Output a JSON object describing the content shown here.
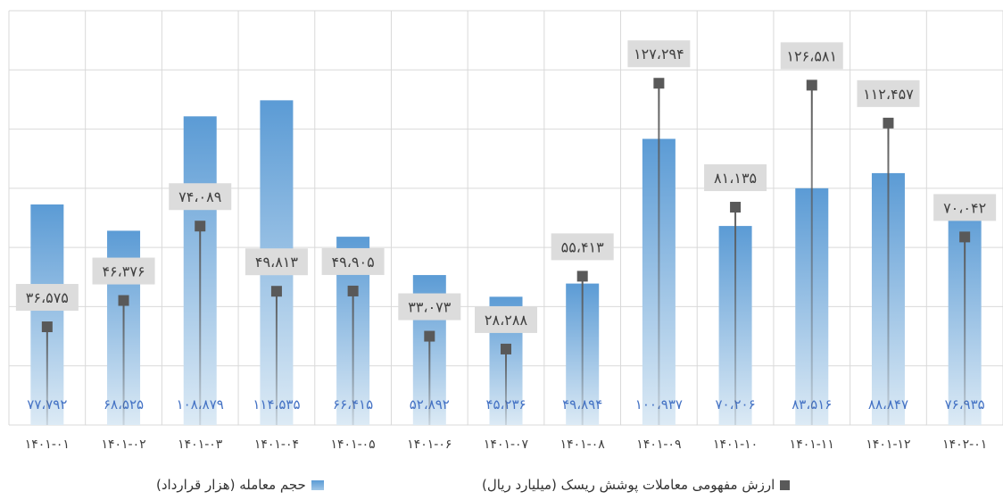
{
  "chart_data": {
    "type": "bar",
    "categories": [
      "۱۴۰۱-۰۱",
      "۱۴۰۱-۰۲",
      "۱۴۰۱-۰۳",
      "۱۴۰۱-۰۴",
      "۱۴۰۱-۰۵",
      "۱۴۰۱-۰۶",
      "۱۴۰۱-۰۷",
      "۱۴۰۱-۰۸",
      "۱۴۰۱-۰۹",
      "۱۴۰۱-۱۰",
      "۱۴۰۱-۱۱",
      "۱۴۰۱-۱۲",
      "۱۴۰۲-۰۱"
    ],
    "series": [
      {
        "name": "حجم معامله (هزار قرارداد)",
        "type": "bar",
        "values": [
          77792,
          68525,
          108879,
          114535,
          66415,
          52892,
          45236,
          49894,
          100937,
          70206,
          83516,
          88847,
          76935
        ],
        "labels": [
          "۷۷،۷۹۲",
          "۶۸،۵۲۵",
          "۱۰۸،۸۷۹",
          "۱۱۴،۵۳۵",
          "۶۶،۴۱۵",
          "۵۲،۸۹۲",
          "۴۵،۲۳۶",
          "۴۹،۸۹۴",
          "۱۰۰،۹۳۷",
          "۷۰،۲۰۶",
          "۸۳،۵۱۶",
          "۸۸،۸۴۷",
          "۷۶،۹۳۵"
        ],
        "color": "#5b9bd5"
      },
      {
        "name": "ارزش مفهومی معاملات  پوشش ریسک (میلیارد ریال)",
        "type": "marker",
        "values": [
          36575,
          46376,
          74089,
          49813,
          49905,
          33073,
          28288,
          55413,
          127294,
          81135,
          126581,
          112457,
          70042
        ],
        "labels": [
          "۳۶،۵۷۵",
          "۴۶،۳۷۶",
          "۷۴،۰۸۹",
          "۴۹،۸۱۳",
          "۴۹،۹۰۵",
          "۳۳،۰۷۳",
          "۲۸،۲۸۸",
          "۵۵،۴۱۳",
          "۱۲۷،۲۹۴",
          "۸۱،۱۳۵",
          "۱۲۶،۵۸۱",
          "۱۱۲،۴۵۷",
          "۷۰،۰۴۲"
        ],
        "color": "#595959"
      }
    ],
    "grid": true,
    "legend_position": "bottom"
  },
  "legend": {
    "bar_label": "حجم معامله (هزار قرارداد)",
    "marker_label": "ارزش مفهومی معاملات  پوشش ریسک (میلیارد ریال)"
  },
  "colors": {
    "bar_top": "#5b9bd5",
    "bar_bottom": "#dceaf5",
    "marker": "#595959",
    "label_box": "#dcdcdc",
    "grid": "#d9d9d9",
    "bar_label_text": "#4472c4"
  }
}
